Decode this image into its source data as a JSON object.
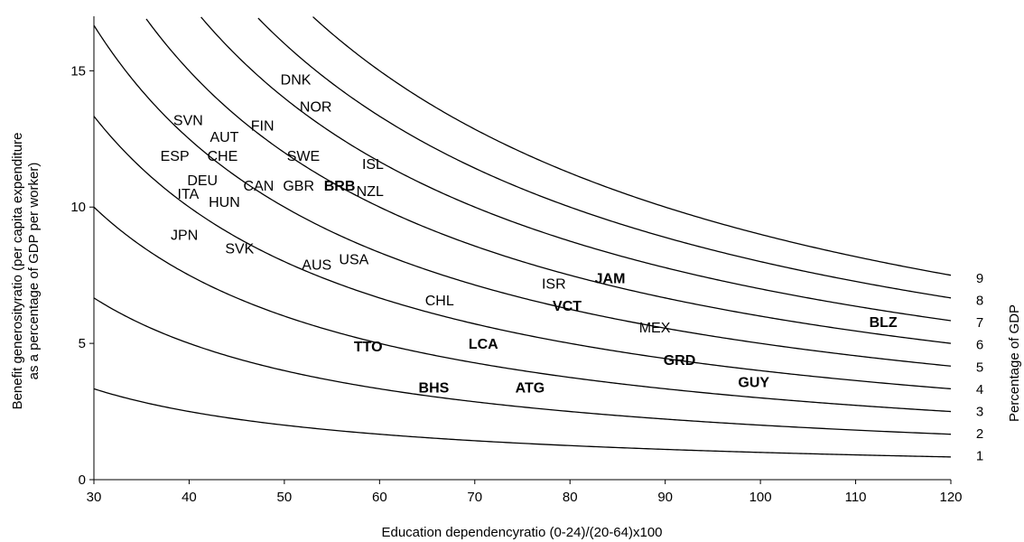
{
  "chart_data": {
    "type": "line",
    "subtype": "iso-curves with labelled scatter points",
    "title": "",
    "xlabel": "Education dependencyratio (0-24)/(20-64)x100",
    "ylabel_line1": "Benefit generosityratio (per capita expenditure",
    "ylabel_line2": "as a percentage of GDP per worker)",
    "right_axis_label": "Percentage  of GDP",
    "xlim": [
      30,
      120
    ],
    "ylim": [
      0,
      17
    ],
    "xticks": [
      30,
      40,
      50,
      60,
      70,
      80,
      90,
      100,
      110,
      120
    ],
    "yticks": [
      0,
      5,
      10,
      15
    ],
    "grid": false,
    "curves": {
      "formula": "benefit_ratio = 100 * percent_of_gdp / education_dependency_ratio",
      "percent_of_gdp_levels": [
        1,
        2,
        3,
        4,
        5,
        6,
        7,
        8,
        9
      ],
      "labels": [
        "1",
        "2",
        "3",
        "4",
        "5",
        "6",
        "7",
        "8",
        "9"
      ]
    },
    "points": [
      {
        "label": "DNK",
        "x": 51.2,
        "y": 14.7,
        "bold": false
      },
      {
        "label": "NOR",
        "x": 53.3,
        "y": 13.7,
        "bold": false
      },
      {
        "label": "SVN",
        "x": 39.9,
        "y": 13.2,
        "bold": false
      },
      {
        "label": "AUT",
        "x": 43.7,
        "y": 12.6,
        "bold": false
      },
      {
        "label": "FIN",
        "x": 47.7,
        "y": 13.0,
        "bold": false
      },
      {
        "label": "ESP",
        "x": 38.5,
        "y": 11.9,
        "bold": false
      },
      {
        "label": "CHE",
        "x": 43.5,
        "y": 11.9,
        "bold": false
      },
      {
        "label": "SWE",
        "x": 52.0,
        "y": 11.9,
        "bold": false
      },
      {
        "label": "ISL",
        "x": 59.3,
        "y": 11.6,
        "bold": false
      },
      {
        "label": "DEU",
        "x": 41.4,
        "y": 11.0,
        "bold": false
      },
      {
        "label": "CAN",
        "x": 47.3,
        "y": 10.8,
        "bold": false
      },
      {
        "label": "GBR",
        "x": 51.5,
        "y": 10.8,
        "bold": false
      },
      {
        "label": "BRB",
        "x": 55.8,
        "y": 10.8,
        "bold": true
      },
      {
        "label": "NZL",
        "x": 59.0,
        "y": 10.6,
        "bold": false
      },
      {
        "label": "ITA",
        "x": 39.9,
        "y": 10.5,
        "bold": false
      },
      {
        "label": "HUN",
        "x": 43.7,
        "y": 10.2,
        "bold": false
      },
      {
        "label": "JPN",
        "x": 39.5,
        "y": 9.0,
        "bold": false
      },
      {
        "label": "SVK",
        "x": 45.3,
        "y": 8.5,
        "bold": false
      },
      {
        "label": "USA",
        "x": 57.3,
        "y": 8.1,
        "bold": false
      },
      {
        "label": "AUS",
        "x": 53.4,
        "y": 7.9,
        "bold": false
      },
      {
        "label": "ISR",
        "x": 78.3,
        "y": 7.2,
        "bold": false
      },
      {
        "label": "JAM",
        "x": 84.2,
        "y": 7.4,
        "bold": true
      },
      {
        "label": "CHL",
        "x": 66.3,
        "y": 6.6,
        "bold": false
      },
      {
        "label": "VCT",
        "x": 79.7,
        "y": 6.4,
        "bold": true
      },
      {
        "label": "MEX",
        "x": 88.9,
        "y": 5.6,
        "bold": false
      },
      {
        "label": "BLZ",
        "x": 112.9,
        "y": 5.8,
        "bold": true
      },
      {
        "label": "TTO",
        "x": 58.8,
        "y": 4.9,
        "bold": true
      },
      {
        "label": "LCA",
        "x": 70.9,
        "y": 5.0,
        "bold": true
      },
      {
        "label": "GRD",
        "x": 91.5,
        "y": 4.4,
        "bold": true
      },
      {
        "label": "GUY",
        "x": 99.3,
        "y": 3.6,
        "bold": true
      },
      {
        "label": "BHS",
        "x": 65.7,
        "y": 3.4,
        "bold": true
      },
      {
        "label": "ATG",
        "x": 75.8,
        "y": 3.4,
        "bold": true
      }
    ]
  }
}
